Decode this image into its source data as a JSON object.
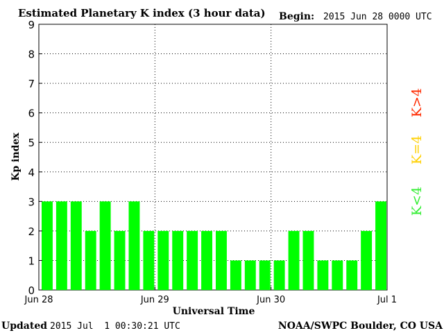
{
  "header": {
    "title": "Estimated Planetary K index (3 hour data)",
    "begin_label": "Begin:",
    "begin_value": "2015 Jun 28 0000 UTC"
  },
  "footer": {
    "updated_label": "Updated",
    "updated_value": "2015 Jul  1 00:30:21 UTC",
    "source": "NOAA/SWPC Boulder, CO USA"
  },
  "legend": {
    "items": [
      {
        "label": "K>4",
        "color": "#ff2a00"
      },
      {
        "label": "K=4",
        "color": "#ffd000"
      },
      {
        "label": "K<4",
        "color": "#33ee33"
      }
    ]
  },
  "chart_data": {
    "type": "bar",
    "title": "Estimated Planetary K index (3 hour data)",
    "xlabel": "Universal Time",
    "ylabel": "Kp index",
    "ylim": [
      0,
      9
    ],
    "yticks": [
      0,
      1,
      2,
      3,
      4,
      5,
      6,
      7,
      8,
      9
    ],
    "xtick_labels": [
      "Jun 28",
      "Jun 29",
      "Jun 30",
      "Jul 1"
    ],
    "bar_color": "#00ff00",
    "grid": true,
    "values": [
      3,
      3,
      3,
      2,
      3,
      2,
      3,
      2,
      2,
      2,
      2,
      2,
      2,
      1,
      1,
      1,
      1,
      2,
      2,
      1,
      1,
      1,
      2,
      3
    ]
  }
}
